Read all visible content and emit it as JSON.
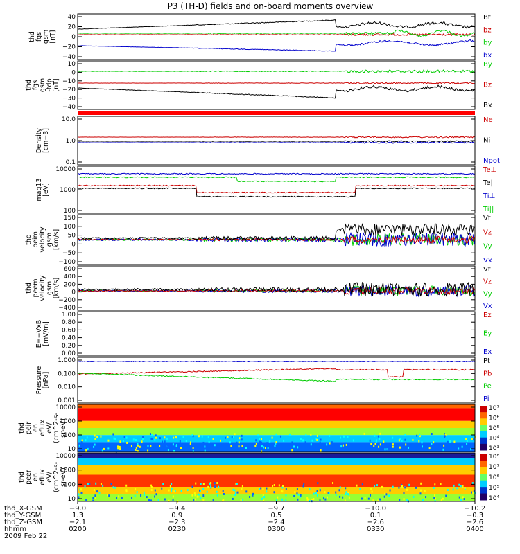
{
  "title": "P3 (TH-D) fields and on-board moments overview",
  "colors": {
    "black": "#000000",
    "red": "#cc0000",
    "green": "#00cc00",
    "blue": "#0000cc"
  },
  "chart_data": [
    {
      "type": "line",
      "id": "p1",
      "ylabel": [
        "thd",
        "fgs",
        "gsm",
        "[nT]"
      ],
      "yticks": [
        "40",
        "20",
        "0",
        "−20",
        "−40"
      ],
      "series": [
        {
          "name": "Bt",
          "color": "red"
        },
        {
          "name": "bz",
          "color": "red"
        },
        {
          "name": "by",
          "color": "green"
        },
        {
          "name": "bx",
          "color": "blue"
        }
      ],
      "legend": [
        "Bt",
        "bz",
        "by",
        "bx"
      ]
    },
    {
      "type": "line",
      "id": "p2",
      "ylabel": [
        "thd",
        "fgs",
        "gsm",
        "-tdp",
        "[nT]"
      ],
      "yticks": [
        "10",
        "0",
        "−10",
        "−20",
        "−30",
        "−40"
      ],
      "legend": [
        "By",
        "Bz",
        "Bx"
      ]
    },
    {
      "type": "bar",
      "id": "p3",
      "label": "mode bar"
    },
    {
      "type": "line",
      "id": "p4",
      "ylabel": [
        "Density",
        "[cm−3]"
      ],
      "yticks": [
        "10.0",
        "1.0",
        "0.1"
      ],
      "ylog": true,
      "legend": [
        "Ne",
        "Ni",
        "Npot"
      ]
    },
    {
      "type": "line",
      "id": "p5",
      "ylabel": [
        "mag13",
        "[eV]"
      ],
      "yticks": [
        "10000",
        "1000",
        "100"
      ],
      "ylog": true,
      "legend": [
        "Te⊥",
        "Te||",
        "Ti⊥",
        "Ti||"
      ]
    },
    {
      "type": "line",
      "id": "p6",
      "ylabel": [
        "thd",
        "peim",
        "velocity",
        "gsm",
        "[km/s]"
      ],
      "yticks": [
        "150",
        "100",
        "50",
        "0",
        "−50",
        "−100"
      ],
      "legend": [
        "Vt",
        "Vz",
        "Vy",
        "Vx"
      ]
    },
    {
      "type": "line",
      "id": "p7",
      "ylabel": [
        "thd",
        "peem",
        "velocity",
        "gsm",
        "[km/s]"
      ],
      "yticks": [
        "600",
        "400",
        "200",
        "0",
        "−200",
        "−400"
      ],
      "legend": [
        "Vt",
        "Vz",
        "Vy",
        "Vx"
      ]
    },
    {
      "type": "line",
      "id": "p8",
      "ylabel": [
        "E=−VxB",
        "[mV/m]"
      ],
      "yticks": [
        "1.00",
        "0.80",
        "0.60",
        "0.40",
        "0.20",
        "0.00"
      ],
      "legend": [
        "Ez",
        "Ey",
        "Ex"
      ]
    },
    {
      "type": "line",
      "id": "p9",
      "ylabel": [
        "Pressure",
        "[nPa]"
      ],
      "yticks": [
        "1.000",
        "0.100",
        "0.010",
        "0.001"
      ],
      "ylog": true,
      "legend": [
        "Pt",
        "Pb",
        "Pe",
        "Pi"
      ]
    },
    {
      "type": "heatmap",
      "id": "p10",
      "ylabel": [
        "thd",
        "peir",
        "en",
        "eflux",
        "eV/",
        "(cm^2-s-",
        "sr-eV)"
      ],
      "yticks": [
        "10000",
        "1000",
        "100",
        "10"
      ],
      "colorbar": [
        "10⁷",
        "10⁶",
        "10⁵",
        "10⁴",
        "10³"
      ]
    },
    {
      "type": "heatmap",
      "id": "p11",
      "ylabel": [
        "thd",
        "peer",
        "en",
        "eflux",
        "eV/",
        "(cm^2-s-",
        "sr-eV)"
      ],
      "yticks": [
        "10000",
        "1000",
        "100",
        "10"
      ],
      "colorbar": [
        "10⁸",
        "10⁷",
        "10⁶",
        "10⁵",
        "10⁴"
      ]
    }
  ],
  "footer": {
    "rows": [
      {
        "label": "thd_X-GSM",
        "values": [
          "−9.0",
          "−9.4",
          "−9.7",
          "−10.0",
          "−10.2"
        ]
      },
      {
        "label": "thd_Y-GSM",
        "values": [
          "1.3",
          "0.9",
          "0.5",
          "0.1",
          "−0.3"
        ]
      },
      {
        "label": "thd_Z-GSM",
        "values": [
          "−2.1",
          "−2.3",
          "−2.4",
          "−2.6",
          "−2.6"
        ]
      },
      {
        "label": "hhmm",
        "values": [
          "0200",
          "0230",
          "0300",
          "0330",
          "0400"
        ]
      }
    ],
    "date": "2009 Feb 22"
  }
}
